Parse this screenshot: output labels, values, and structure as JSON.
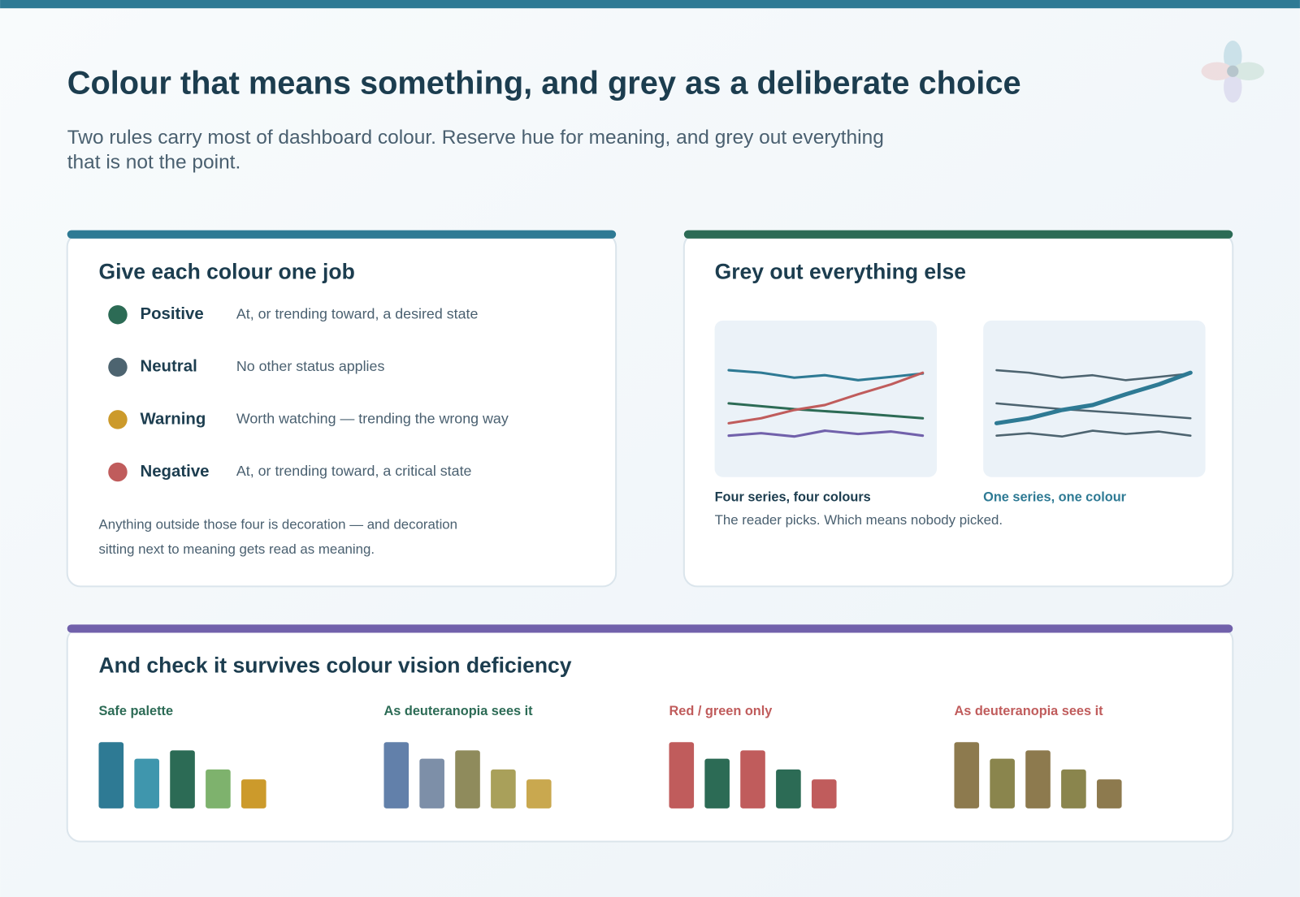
{
  "header": {
    "title": "Colour that means something, and grey as a deliberate choice",
    "subtitle": [
      "Two rules carry most of dashboard colour. Reserve hue for meaning, and grey out everything",
      "that is not the point."
    ]
  },
  "panels": [
    {
      "title": "Give each colour one job",
      "items": [
        {
          "label": "Positive",
          "description": "At, or trending toward, a desired state"
        },
        {
          "label": "Neutral",
          "description": "No other status applies"
        },
        {
          "label": "Warning",
          "description": "Worth watching — trending the wrong way"
        },
        {
          "label": "Negative",
          "description": "At, or trending toward, a critical state"
        }
      ],
      "note": [
        "Anything outside those four is decoration — and decoration",
        "sitting next to meaning gets read as meaning."
      ]
    },
    {
      "title": "Grey out everything else",
      "captions": [
        "Four series, four colours",
        "One series, one colour"
      ],
      "note": "The reader picks. Which means nobody picked."
    },
    {
      "title": "And check it survives colour vision deficiency",
      "palettes": [
        "Safe palette",
        "As deuteranopia sees it",
        "Red / green only",
        "As deuteranopia sees it"
      ]
    }
  ]
}
